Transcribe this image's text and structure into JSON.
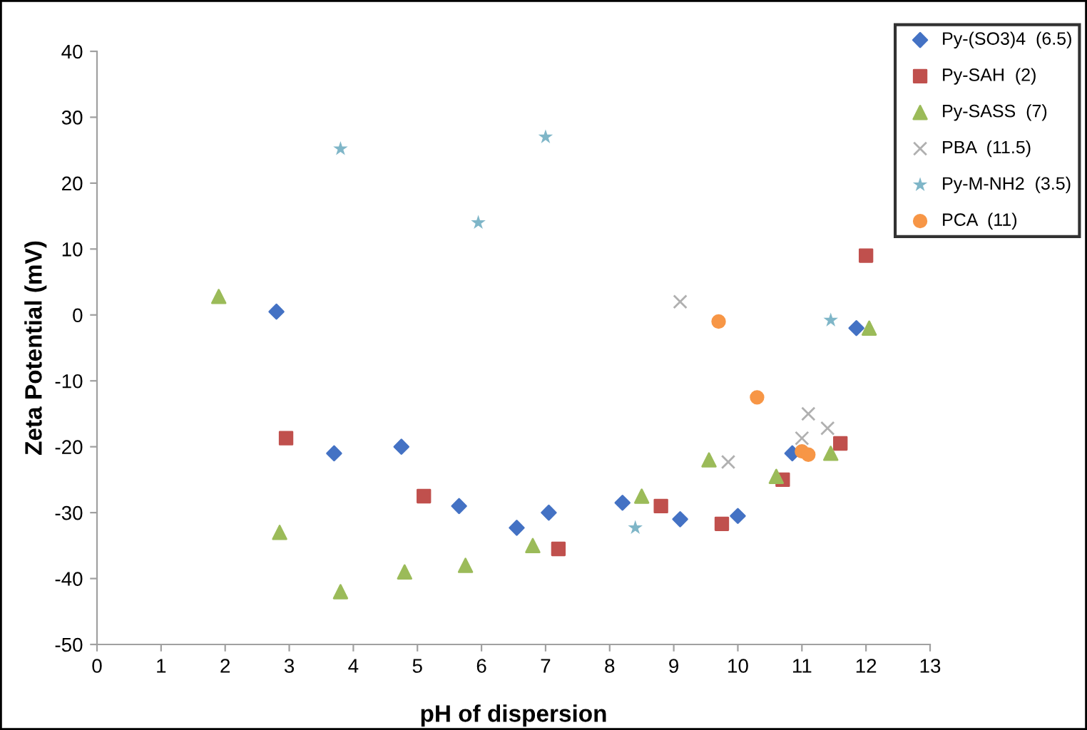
{
  "chart_data": {
    "type": "scatter",
    "xlabel": "pH of dispersion",
    "ylabel": "Zeta Potential (mV)",
    "xlim": [
      0,
      13
    ],
    "xticks": [
      0,
      1,
      2,
      3,
      4,
      5,
      6,
      7,
      8,
      9,
      10,
      11,
      12,
      13
    ],
    "ylim": [
      -50,
      40
    ],
    "yticks": [
      -50,
      -40,
      -30,
      -20,
      -10,
      0,
      10,
      20,
      30,
      40
    ],
    "grid": false,
    "legend": "top right",
    "series": [
      {
        "name": "Py-(SO3)4  (6.5)",
        "color": "#4472c4",
        "marker": "diamond",
        "x": [
          2.8,
          3.7,
          4.75,
          5.65,
          6.55,
          7.05,
          8.2,
          9.1,
          10.0,
          10.85,
          11.85
        ],
        "values": [
          0.5,
          -21,
          -20,
          -29,
          -32.3,
          -30,
          -28.5,
          -31,
          -30.5,
          -21,
          -2
        ]
      },
      {
        "name": "Py-SAH  (2)",
        "color": "#c0504d",
        "marker": "square",
        "x": [
          2.95,
          5.1,
          7.2,
          8.8,
          9.75,
          10.7,
          11.6,
          12.0
        ],
        "values": [
          -18.7,
          -27.5,
          -35.5,
          -29,
          -31.7,
          -25,
          -19.5,
          9
        ]
      },
      {
        "name": "Py-SASS  (7)",
        "color": "#9bbb59",
        "marker": "triangle",
        "x": [
          1.9,
          2.85,
          3.8,
          4.8,
          5.75,
          6.8,
          8.5,
          9.55,
          10.6,
          11.45,
          12.05
        ],
        "values": [
          2.8,
          -33,
          -42,
          -39,
          -38,
          -35,
          -27.5,
          -22,
          -24.5,
          -21,
          -2
        ]
      },
      {
        "name": "PBA  (11.5)",
        "color": "#b0b0b0",
        "marker": "cross",
        "x": [
          9.1,
          9.85,
          11.0,
          11.1,
          11.4
        ],
        "values": [
          2,
          -22.3,
          -18.7,
          -15,
          -17.2
        ]
      },
      {
        "name": "Py-M-NH2  (3.5)",
        "color": "#7fb6c8",
        "marker": "star",
        "x": [
          3.8,
          5.95,
          7.0,
          8.4,
          11.45
        ],
        "values": [
          25.2,
          14,
          27,
          -32.3,
          -0.8
        ]
      },
      {
        "name": "PCA  (11)",
        "color": "#f79646",
        "marker": "circle",
        "x": [
          9.7,
          10.3,
          11.0,
          11.1
        ],
        "values": [
          -1,
          -12.5,
          -20.7,
          -21.2
        ]
      }
    ]
  }
}
